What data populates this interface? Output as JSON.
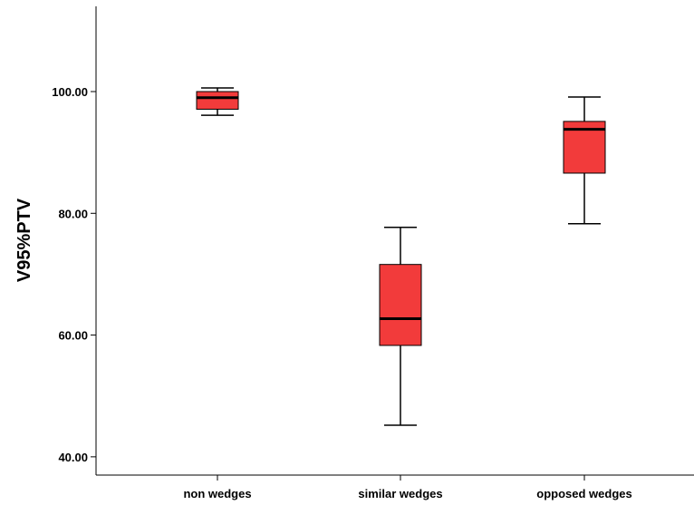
{
  "chart_data": {
    "type": "box",
    "title": "",
    "xlabel": "",
    "ylabel": "V95%PTV",
    "ylim": [
      37,
      114
    ],
    "yticks": [
      {
        "value": 40,
        "label": "40.00"
      },
      {
        "value": 60,
        "label": "60.00"
      },
      {
        "value": 80,
        "label": "80.00"
      },
      {
        "value": 100,
        "label": "100.00"
      }
    ],
    "categories": [
      "non wedges",
      "similar wedges",
      "opposed wedges"
    ],
    "boxes": [
      {
        "category": "non wedges",
        "min": 96.1,
        "q1": 97.1,
        "median": 99.0,
        "q3": 100.0,
        "max": 100.6
      },
      {
        "category": "similar wedges",
        "min": 45.2,
        "q1": 58.3,
        "median": 62.7,
        "q3": 71.6,
        "max": 77.7
      },
      {
        "category": "opposed wedges",
        "min": 78.3,
        "q1": 86.6,
        "median": 93.8,
        "q3": 95.1,
        "max": 99.1
      }
    ],
    "grid": false,
    "box_color": "#f23b3b",
    "line_color": "#000000"
  }
}
